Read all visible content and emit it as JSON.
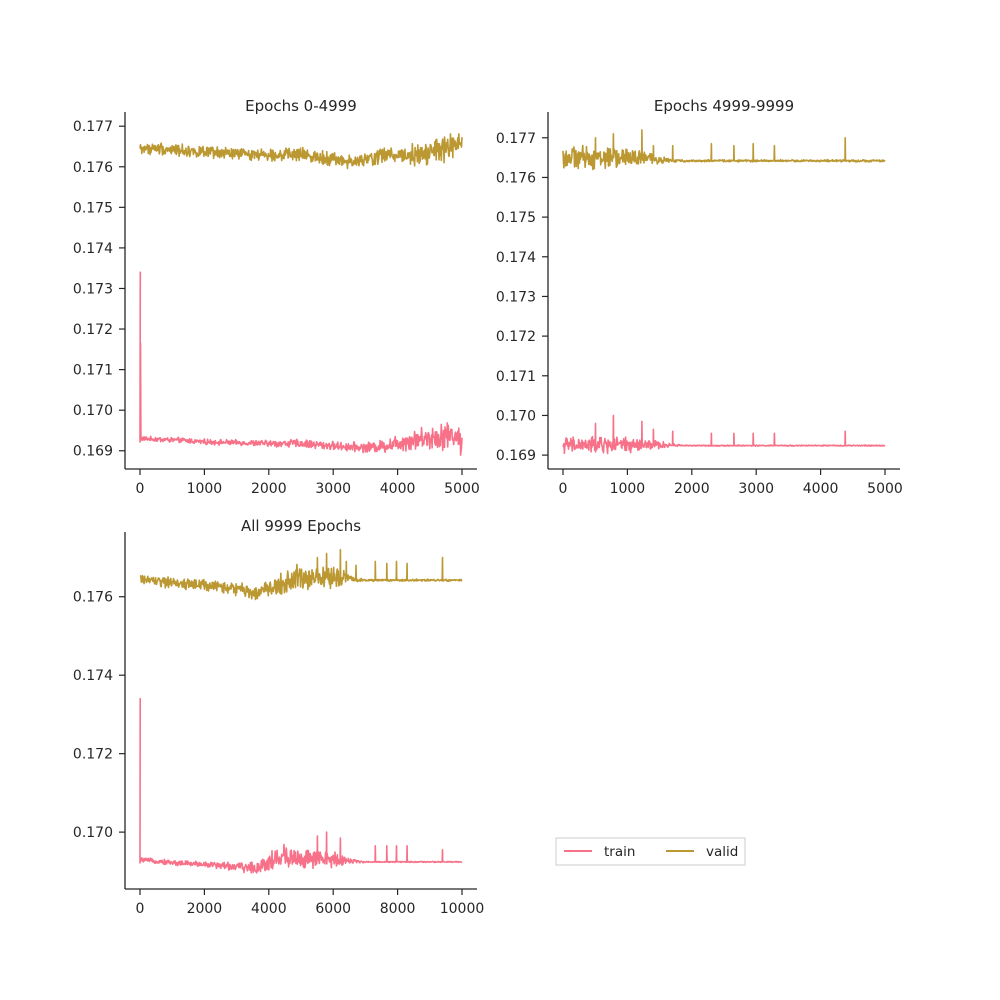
{
  "colors": {
    "train": "#f77189",
    "valid": "#bb9832",
    "axis": "#262626",
    "text": "#262626",
    "background": "#ffffff"
  },
  "legend": {
    "placement": "lower-right",
    "ncol": 2,
    "entries": [
      {
        "key": "train",
        "label": "train"
      },
      {
        "key": "valid",
        "label": "valid"
      }
    ]
  },
  "chart_data": [
    {
      "type": "line",
      "title": "Epochs 0-4999",
      "xlabel": "",
      "ylabel": "",
      "xlim": [
        0,
        5000
      ],
      "ylim": [
        0.16855,
        0.17735
      ],
      "xticks": [
        0,
        1000,
        2000,
        3000,
        4000,
        5000
      ],
      "xtick_labels": [
        "0",
        "1000",
        "2000",
        "3000",
        "4000",
        "5000"
      ],
      "yticks": [
        0.169,
        0.17,
        0.171,
        0.172,
        0.173,
        0.174,
        0.175,
        0.176,
        0.177
      ],
      "ytick_labels": [
        "0.169",
        "0.170",
        "0.171",
        "0.172",
        "0.173",
        "0.174",
        "0.175",
        "0.176",
        "0.177"
      ],
      "grid": false,
      "series": [
        {
          "name": "train",
          "color": "#f77189",
          "x": [
            0,
            5,
            10,
            300,
            700,
            1000,
            1500,
            2000,
            2500,
            3000,
            3500,
            3800,
            4000,
            4300,
            4600,
            4900,
            5000
          ],
          "y": [
            0.1692,
            0.1734,
            0.1693,
            0.16928,
            0.16925,
            0.16922,
            0.1692,
            0.16918,
            0.16918,
            0.16912,
            0.16908,
            0.16912,
            0.1692,
            0.16928,
            0.16935,
            0.1694,
            0.16915
          ],
          "noise": [
            4e-05,
            0.0,
            4e-05,
            5e-05,
            5e-05,
            5e-05,
            5e-05,
            6e-05,
            8e-05,
            8e-05,
            9e-05,
            0.00012,
            0.00016,
            0.0002,
            0.00024,
            0.00026,
            0.00025
          ]
        },
        {
          "name": "valid",
          "color": "#bb9832",
          "x": [
            0,
            300,
            700,
            1000,
            1500,
            2000,
            2500,
            3000,
            3300,
            3600,
            3800,
            4000,
            4300,
            4600,
            4900,
            5000
          ],
          "y": [
            0.17645,
            0.17645,
            0.1764,
            0.17635,
            0.17632,
            0.1763,
            0.1763,
            0.1762,
            0.1761,
            0.1762,
            0.1763,
            0.1763,
            0.1763,
            0.1764,
            0.1765,
            0.1765
          ],
          "noise": [
            0.0001,
            0.00012,
            0.00012,
            0.00011,
            0.00011,
            0.00011,
            0.00012,
            0.00013,
            0.00013,
            0.00014,
            0.00016,
            0.00018,
            0.00022,
            0.00026,
            0.0003,
            0.00028
          ]
        }
      ]
    },
    {
      "type": "line",
      "title": "Epochs 4999-9999",
      "xlabel": "",
      "ylabel": "",
      "xlim": [
        0,
        5000
      ],
      "ylim": [
        0.16865,
        0.17765
      ],
      "xticks": [
        0,
        1000,
        2000,
        3000,
        4000,
        5000
      ],
      "xtick_labels": [
        "0",
        "1000",
        "2000",
        "3000",
        "4000",
        "5000"
      ],
      "yticks": [
        0.169,
        0.17,
        0.171,
        0.172,
        0.173,
        0.174,
        0.175,
        0.176,
        0.177
      ],
      "ytick_labels": [
        "0.169",
        "0.170",
        "0.171",
        "0.172",
        "0.173",
        "0.174",
        "0.175",
        "0.176",
        "0.177"
      ],
      "grid": false,
      "series": [
        {
          "name": "train",
          "color": "#f77189",
          "x": [
            0,
            300,
            600,
            900,
            1200,
            1500,
            1700,
            2000,
            5000
          ],
          "y": [
            0.16925,
            0.16925,
            0.16925,
            0.16925,
            0.16925,
            0.16925,
            0.16925,
            0.16924,
            0.16924
          ],
          "noise": [
            0.00015,
            0.00016,
            0.00016,
            0.00015,
            0.00014,
            8e-05,
            2e-05,
            1e-05,
            1e-05
          ],
          "spikes": [
            [
              500,
              0.1698
            ],
            [
              780,
              0.17
            ],
            [
              1220,
              0.16985
            ],
            [
              1400,
              0.16965
            ],
            [
              1700,
              0.1696
            ],
            [
              2300,
              0.16955
            ],
            [
              2650,
              0.16955
            ],
            [
              2950,
              0.16955
            ],
            [
              3280,
              0.16955
            ],
            [
              4380,
              0.1696
            ]
          ]
        },
        {
          "name": "valid",
          "color": "#bb9832",
          "x": [
            0,
            300,
            600,
            900,
            1200,
            1500,
            1700,
            2000,
            5000
          ],
          "y": [
            0.1765,
            0.1765,
            0.1765,
            0.1765,
            0.1765,
            0.17645,
            0.17642,
            0.17642,
            0.17642
          ],
          "noise": [
            0.0002,
            0.00022,
            0.00022,
            0.00018,
            0.00015,
            8e-05,
            3e-05,
            2e-05,
            2e-05
          ],
          "spikes": [
            [
              500,
              0.177
            ],
            [
              780,
              0.1771
            ],
            [
              1220,
              0.1772
            ],
            [
              1400,
              0.1768
            ],
            [
              1700,
              0.1768
            ],
            [
              2300,
              0.17685
            ],
            [
              2650,
              0.1768
            ],
            [
              2950,
              0.17685
            ],
            [
              3280,
              0.1768
            ],
            [
              4380,
              0.177
            ]
          ]
        }
      ]
    },
    {
      "type": "line",
      "title": "All 9999 Epochs",
      "xlabel": "",
      "ylabel": "",
      "xlim": [
        0,
        10000
      ],
      "ylim": [
        0.16855,
        0.17765
      ],
      "xticks": [
        0,
        2000,
        4000,
        6000,
        8000,
        10000
      ],
      "xtick_labels": [
        "0",
        "2000",
        "4000",
        "6000",
        "8000",
        "10000"
      ],
      "yticks": [
        0.17,
        0.172,
        0.174,
        0.176
      ],
      "ytick_labels": [
        "0.170",
        "0.172",
        "0.174",
        "0.176"
      ],
      "grid": false,
      "series": [
        {
          "name": "train",
          "color": "#f77189",
          "x": [
            0,
            5,
            10,
            1000,
            2000,
            3000,
            3600,
            4000,
            4600,
            5000,
            5600,
            6200,
            6700,
            7000,
            10000
          ],
          "y": [
            0.1692,
            0.1734,
            0.1693,
            0.16922,
            0.16918,
            0.16912,
            0.16908,
            0.16925,
            0.1694,
            0.1693,
            0.1693,
            0.1693,
            0.16925,
            0.16924,
            0.16924
          ],
          "noise": [
            4e-05,
            0.0,
            4e-05,
            5e-05,
            6e-05,
            8e-05,
            0.00012,
            0.0002,
            0.00026,
            0.0002,
            0.00018,
            0.00014,
            4e-05,
            1e-05,
            1e-05
          ],
          "spikes": [
            [
              5500,
              0.1699
            ],
            [
              5780,
              0.17
            ],
            [
              6220,
              0.16985
            ],
            [
              7300,
              0.16965
            ],
            [
              7650,
              0.16965
            ],
            [
              7950,
              0.16965
            ],
            [
              8280,
              0.16965
            ],
            [
              9380,
              0.16955
            ]
          ]
        },
        {
          "name": "valid",
          "color": "#bb9832",
          "x": [
            0,
            1000,
            2000,
            3000,
            3600,
            4000,
            4300,
            4600,
            5000,
            5500,
            6200,
            6700,
            7000,
            10000
          ],
          "y": [
            0.17645,
            0.17635,
            0.1763,
            0.1762,
            0.1761,
            0.1762,
            0.1763,
            0.1764,
            0.1765,
            0.1765,
            0.1765,
            0.17645,
            0.17642,
            0.17642
          ],
          "noise": [
            0.0001,
            0.00011,
            0.00011,
            0.00013,
            0.00014,
            0.00018,
            0.00022,
            0.00026,
            0.00026,
            0.00024,
            0.00018,
            6e-05,
            2e-05,
            2e-05
          ],
          "spikes": [
            [
              5500,
              0.177
            ],
            [
              5780,
              0.1771
            ],
            [
              6220,
              0.1772
            ],
            [
              6400,
              0.1769
            ],
            [
              6700,
              0.1768
            ],
            [
              7300,
              0.1769
            ],
            [
              7650,
              0.17685
            ],
            [
              7950,
              0.1769
            ],
            [
              8280,
              0.17685
            ],
            [
              9380,
              0.177
            ]
          ]
        }
      ]
    }
  ]
}
